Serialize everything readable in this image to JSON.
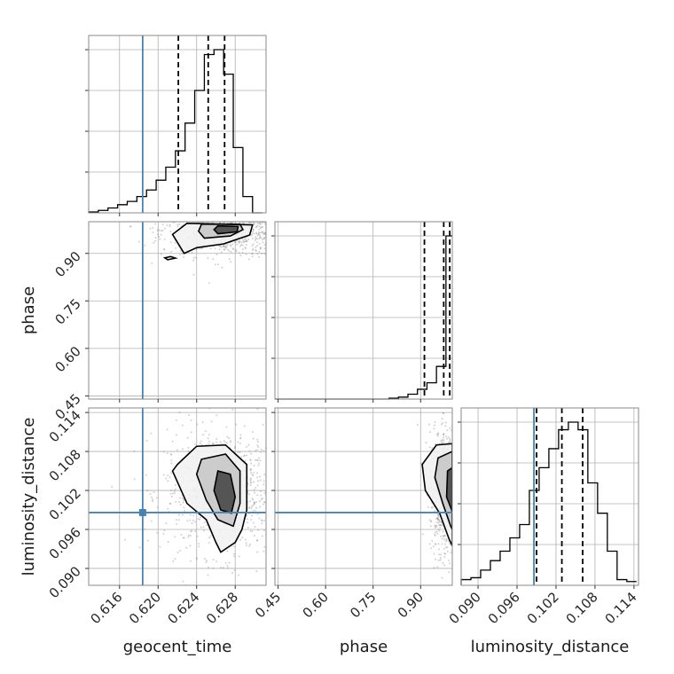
{
  "chart_data": {
    "type": "corner",
    "parameters": [
      "geocent_time",
      "phase",
      "luminosity_distance"
    ],
    "axis_labels": {
      "geocent_time": "geocent_time",
      "phase": "phase",
      "luminosity_distance": "luminosity_distance"
    },
    "ranges": {
      "geocent_time": [
        0.6128,
        0.6312
      ],
      "phase": [
        0.44,
        1.0
      ],
      "luminosity_distance": [
        0.0874,
        0.1147
      ]
    },
    "ticks": {
      "geocent_time": [
        "0.616",
        "0.620",
        "0.624",
        "0.628"
      ],
      "phase": [
        "0.45",
        "0.60",
        "0.75",
        "0.90"
      ],
      "luminosity_distance": [
        "0.090",
        "0.096",
        "0.102",
        "0.108",
        "0.114"
      ]
    },
    "truths": {
      "geocent_time": 0.6184,
      "phase": null,
      "luminosity_distance": 0.0986
    },
    "truth_color": "#4682b4",
    "histogram_color": "#000000",
    "quantile_lines": {
      "geocent_time": [
        0.6221,
        0.6252,
        0.6269
      ],
      "phase": [
        0.912,
        0.973,
        0.992
      ],
      "luminosity_distance": [
        0.099,
        0.1029,
        0.1061
      ]
    },
    "histograms": {
      "geocent_time": {
        "bin_edges": [
          0.6128,
          0.6138,
          0.6148,
          0.6158,
          0.6168,
          0.6178,
          0.6188,
          0.6198,
          0.6208,
          0.6218,
          0.6228,
          0.6238,
          0.6248,
          0.6258,
          0.6268,
          0.6278,
          0.6288,
          0.6298,
          0.6308
        ],
        "counts": [
          0.005,
          0.015,
          0.03,
          0.05,
          0.07,
          0.1,
          0.14,
          0.2,
          0.28,
          0.38,
          0.55,
          0.75,
          0.97,
          1.0,
          0.85,
          0.4,
          0.1,
          0.0
        ]
      },
      "phase": {
        "bin_edges": [
          0.44,
          0.47,
          0.5,
          0.53,
          0.56,
          0.59,
          0.62,
          0.65,
          0.68,
          0.71,
          0.74,
          0.77,
          0.8,
          0.83,
          0.86,
          0.89,
          0.92,
          0.95,
          0.98,
          1.0
        ],
        "counts": [
          0,
          0,
          0,
          0,
          0,
          0,
          0,
          0,
          0,
          0,
          0,
          0,
          0.005,
          0.012,
          0.03,
          0.06,
          0.1,
          0.2,
          1.0
        ]
      },
      "luminosity_distance": {
        "bin_edges": [
          0.0874,
          0.0889,
          0.0904,
          0.0919,
          0.0934,
          0.0949,
          0.0964,
          0.0979,
          0.0994,
          0.1009,
          0.1024,
          0.1039,
          0.1054,
          0.1069,
          0.1084,
          0.1099,
          0.1114,
          0.1129,
          0.1144
        ],
        "counts": [
          0.03,
          0.04,
          0.08,
          0.13,
          0.18,
          0.25,
          0.32,
          0.5,
          0.62,
          0.72,
          0.82,
          0.86,
          0.82,
          0.54,
          0.38,
          0.18,
          0.03,
          0.02
        ]
      }
    },
    "pairs": [
      {
        "x": "geocent_time",
        "y": "phase",
        "peak": [
          0.6273,
          0.975
        ],
        "spread": [
          0.0025,
          0.03
        ],
        "contours": [
          {
            "level": "outer",
            "points": [
              [
                0.6227,
                0.9
              ],
              [
                0.624,
                0.918
              ],
              [
                0.6268,
                0.93
              ],
              [
                0.6295,
                0.958
              ],
              [
                0.6298,
                0.99
              ],
              [
                0.623,
                0.995
              ],
              [
                0.6215,
                0.96
              ],
              [
                0.6227,
                0.9
              ]
            ]
          },
          {
            "level": "middle",
            "points": [
              [
                0.6248,
                0.948
              ],
              [
                0.6275,
                0.955
              ],
              [
                0.6288,
                0.975
              ],
              [
                0.6285,
                0.992
              ],
              [
                0.6245,
                0.992
              ],
              [
                0.6242,
                0.97
              ],
              [
                0.6248,
                0.948
              ]
            ]
          },
          {
            "level": "inner",
            "points": [
              [
                0.6262,
                0.962
              ],
              [
                0.6282,
                0.968
              ],
              [
                0.6283,
                0.985
              ],
              [
                0.6262,
                0.987
              ],
              [
                0.6258,
                0.975
              ],
              [
                0.6262,
                0.962
              ]
            ]
          },
          {
            "level": "island",
            "points": [
              [
                0.621,
                0.88
              ],
              [
                0.6218,
                0.885
              ],
              [
                0.6213,
                0.89
              ],
              [
                0.6207,
                0.886
              ],
              [
                0.621,
                0.88
              ]
            ]
          }
        ]
      },
      {
        "x": "geocent_time",
        "y": "luminosity_distance",
        "peak": [
          0.6268,
          0.1018
        ],
        "spread": [
          0.0022,
          0.0035
        ],
        "contours": [
          {
            "level": "outer",
            "points": [
              [
                0.622,
                0.106
              ],
              [
                0.624,
                0.1088
              ],
              [
                0.627,
                0.109
              ],
              [
                0.6292,
                0.106
              ],
              [
                0.6292,
                0.099
              ],
              [
                0.6287,
                0.096
              ],
              [
                0.628,
                0.094
              ],
              [
                0.6265,
                0.0925
              ],
              [
                0.626,
                0.094
              ],
              [
                0.625,
                0.0975
              ],
              [
                0.623,
                0.1
              ],
              [
                0.6215,
                0.105
              ],
              [
                0.622,
                0.106
              ]
            ]
          },
          {
            "level": "middle",
            "points": [
              [
                0.6245,
                0.1068
              ],
              [
                0.627,
                0.1076
              ],
              [
                0.6285,
                0.105
              ],
              [
                0.6285,
                0.1
              ],
              [
                0.6278,
                0.0965
              ],
              [
                0.6262,
                0.0975
              ],
              [
                0.625,
                0.1005
              ],
              [
                0.624,
                0.1045
              ],
              [
                0.6245,
                0.1068
              ]
            ]
          },
          {
            "level": "inner",
            "points": [
              [
                0.6262,
                0.105
              ],
              [
                0.6275,
                0.1045
              ],
              [
                0.628,
                0.101
              ],
              [
                0.6276,
                0.0985
              ],
              [
                0.6265,
                0.099
              ],
              [
                0.6258,
                0.102
              ],
              [
                0.6262,
                0.105
              ]
            ]
          }
        ]
      },
      {
        "x": "phase",
        "y": "luminosity_distance",
        "peak": [
          0.985,
          0.1018
        ],
        "spread": [
          0.02,
          0.0035
        ],
        "contours": [
          {
            "level": "outer",
            "points": [
              [
                1.0,
                0.1092
              ],
              [
                0.95,
                0.109
              ],
              [
                0.905,
                0.106
              ],
              [
                0.915,
                0.102
              ],
              [
                0.96,
                0.0985
              ],
              [
                0.99,
                0.0945
              ],
              [
                1.0,
                0.0935
              ]
            ]
          },
          {
            "level": "middle",
            "points": [
              [
                1.0,
                0.108
              ],
              [
                0.955,
                0.107
              ],
              [
                0.945,
                0.104
              ],
              [
                0.97,
                0.1
              ],
              [
                0.995,
                0.0965
              ],
              [
                1.0,
                0.096
              ]
            ]
          },
          {
            "level": "inner",
            "points": [
              [
                1.0,
                0.1055
              ],
              [
                0.985,
                0.105
              ],
              [
                0.982,
                0.101
              ],
              [
                0.998,
                0.099
              ],
              [
                1.0,
                0.0985
              ]
            ]
          }
        ]
      }
    ]
  }
}
